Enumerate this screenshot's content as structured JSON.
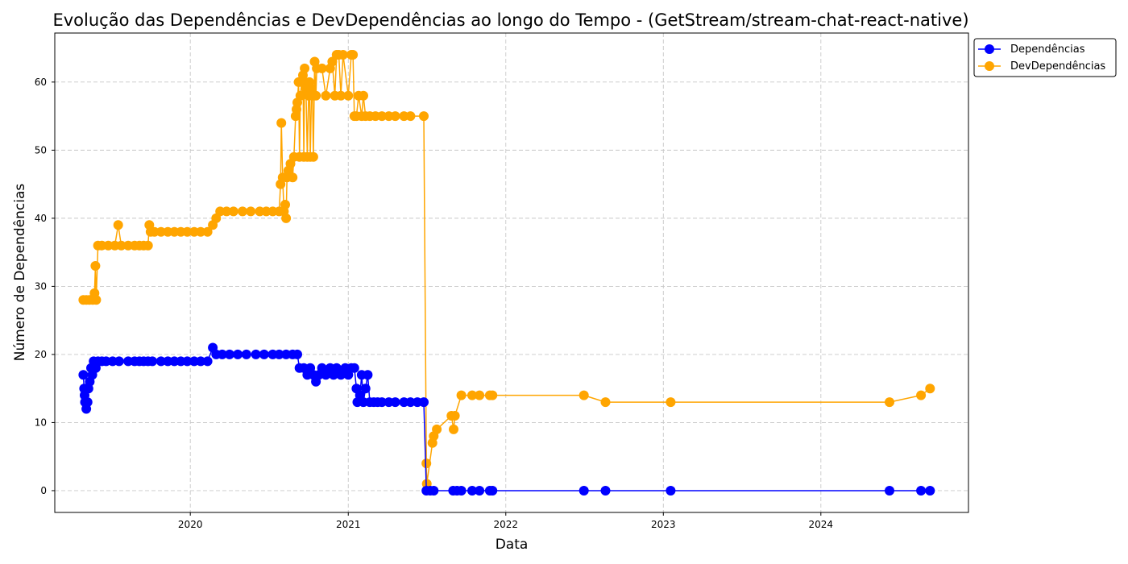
{
  "chart_data": {
    "type": "line",
    "title": "Evolução das Dependências e DevDependências ao longo do Tempo - (GetStream/stream-chat-react-native)",
    "xlabel": "Data",
    "ylabel": "Número de Dependências",
    "x_ticks": [
      "2020",
      "2021",
      "2022",
      "2023",
      "2024"
    ],
    "y_ticks": [
      "0",
      "10",
      "20",
      "30",
      "40",
      "50",
      "60"
    ],
    "xlim": [
      "2019-02-21",
      "2024-12-08"
    ],
    "ylim": [
      -3.2,
      67.2
    ],
    "grid": true,
    "legend_position": "outside top-right",
    "series": [
      {
        "name": "Dependências",
        "color": "#0000ff",
        "points": [
          [
            "2019-04-28",
            17
          ],
          [
            "2019-04-30",
            15
          ],
          [
            "2019-05-01",
            14
          ],
          [
            "2019-05-02",
            13
          ],
          [
            "2019-05-05",
            12
          ],
          [
            "2019-05-08",
            13
          ],
          [
            "2019-05-10",
            15
          ],
          [
            "2019-05-13",
            16
          ],
          [
            "2019-05-16",
            18
          ],
          [
            "2019-05-19",
            17
          ],
          [
            "2019-05-22",
            19
          ],
          [
            "2019-05-27",
            18
          ],
          [
            "2019-06-01",
            19
          ],
          [
            "2019-06-10",
            19
          ],
          [
            "2019-06-20",
            19
          ],
          [
            "2019-07-05",
            19
          ],
          [
            "2019-07-20",
            19
          ],
          [
            "2019-08-10",
            19
          ],
          [
            "2019-08-25",
            19
          ],
          [
            "2019-09-05",
            19
          ],
          [
            "2019-09-15",
            19
          ],
          [
            "2019-09-25",
            19
          ],
          [
            "2019-10-05",
            19
          ],
          [
            "2019-10-25",
            19
          ],
          [
            "2019-11-10",
            19
          ],
          [
            "2019-11-25",
            19
          ],
          [
            "2019-12-10",
            19
          ],
          [
            "2019-12-25",
            19
          ],
          [
            "2020-01-10",
            19
          ],
          [
            "2020-01-25",
            19
          ],
          [
            "2020-02-10",
            19
          ],
          [
            "2020-02-22",
            21
          ],
          [
            "2020-03-01",
            20
          ],
          [
            "2020-03-15",
            20
          ],
          [
            "2020-04-01",
            20
          ],
          [
            "2020-04-20",
            20
          ],
          [
            "2020-05-10",
            20
          ],
          [
            "2020-06-01",
            20
          ],
          [
            "2020-06-20",
            20
          ],
          [
            "2020-07-10",
            20
          ],
          [
            "2020-07-25",
            20
          ],
          [
            "2020-08-10",
            20
          ],
          [
            "2020-08-25",
            20
          ],
          [
            "2020-09-05",
            20
          ],
          [
            "2020-09-10",
            18
          ],
          [
            "2020-09-20",
            18
          ],
          [
            "2020-09-28",
            17
          ],
          [
            "2020-10-05",
            18
          ],
          [
            "2020-10-12",
            17
          ],
          [
            "2020-10-18",
            16
          ],
          [
            "2020-10-25",
            17
          ],
          [
            "2020-11-01",
            18
          ],
          [
            "2020-11-10",
            17
          ],
          [
            "2020-11-20",
            18
          ],
          [
            "2020-11-28",
            17
          ],
          [
            "2020-12-05",
            18
          ],
          [
            "2020-12-15",
            17
          ],
          [
            "2020-12-25",
            18
          ],
          [
            "2021-01-01",
            17
          ],
          [
            "2021-01-08",
            18
          ],
          [
            "2021-01-15",
            18
          ],
          [
            "2021-01-20",
            15
          ],
          [
            "2021-01-22",
            13
          ],
          [
            "2021-01-28",
            14
          ],
          [
            "2021-02-01",
            17
          ],
          [
            "2021-02-05",
            13
          ],
          [
            "2021-02-10",
            15
          ],
          [
            "2021-02-15",
            17
          ],
          [
            "2021-02-20",
            13
          ],
          [
            "2021-03-01",
            13
          ],
          [
            "2021-03-10",
            13
          ],
          [
            "2021-03-20",
            13
          ],
          [
            "2021-04-05",
            13
          ],
          [
            "2021-04-20",
            13
          ],
          [
            "2021-05-10",
            13
          ],
          [
            "2021-05-25",
            13
          ],
          [
            "2021-06-10",
            13
          ],
          [
            "2021-06-25",
            13
          ],
          [
            "2021-07-01",
            0
          ],
          [
            "2021-07-10",
            0
          ],
          [
            "2021-07-18",
            0
          ],
          [
            "2021-09-01",
            0
          ],
          [
            "2021-09-10",
            0
          ],
          [
            "2021-09-20",
            0
          ],
          [
            "2021-10-15",
            0
          ],
          [
            "2021-11-01",
            0
          ],
          [
            "2021-11-25",
            0
          ],
          [
            "2021-12-01",
            0
          ],
          [
            "2022-07-01",
            0
          ],
          [
            "2022-08-20",
            0
          ],
          [
            "2023-01-18",
            0
          ],
          [
            "2024-06-08",
            0
          ],
          [
            "2024-08-20",
            0
          ],
          [
            "2024-09-10",
            0
          ]
        ]
      },
      {
        "name": "DevDependências",
        "color": "#ffa500",
        "points": [
          [
            "2019-04-28",
            28
          ],
          [
            "2019-05-05",
            28
          ],
          [
            "2019-05-12",
            28
          ],
          [
            "2019-05-20",
            28
          ],
          [
            "2019-05-24",
            29
          ],
          [
            "2019-05-26",
            33
          ],
          [
            "2019-05-28",
            28
          ],
          [
            "2019-06-01",
            36
          ],
          [
            "2019-06-10",
            36
          ],
          [
            "2019-06-25",
            36
          ],
          [
            "2019-07-10",
            36
          ],
          [
            "2019-07-18",
            39
          ],
          [
            "2019-07-25",
            36
          ],
          [
            "2019-08-10",
            36
          ],
          [
            "2019-08-25",
            36
          ],
          [
            "2019-09-05",
            36
          ],
          [
            "2019-09-15",
            36
          ],
          [
            "2019-09-25",
            36
          ],
          [
            "2019-09-28",
            39
          ],
          [
            "2019-10-01",
            38
          ],
          [
            "2019-10-10",
            38
          ],
          [
            "2019-10-25",
            38
          ],
          [
            "2019-11-10",
            38
          ],
          [
            "2019-11-25",
            38
          ],
          [
            "2019-12-10",
            38
          ],
          [
            "2019-12-25",
            38
          ],
          [
            "2020-01-10",
            38
          ],
          [
            "2020-01-25",
            38
          ],
          [
            "2020-02-10",
            38
          ],
          [
            "2020-02-22",
            39
          ],
          [
            "2020-03-01",
            40
          ],
          [
            "2020-03-10",
            41
          ],
          [
            "2020-03-25",
            41
          ],
          [
            "2020-04-10",
            41
          ],
          [
            "2020-05-01",
            41
          ],
          [
            "2020-05-20",
            41
          ],
          [
            "2020-06-10",
            41
          ],
          [
            "2020-06-25",
            41
          ],
          [
            "2020-07-10",
            41
          ],
          [
            "2020-07-25",
            41
          ],
          [
            "2020-07-28",
            45
          ],
          [
            "2020-07-30",
            54
          ],
          [
            "2020-08-02",
            46
          ],
          [
            "2020-08-05",
            41
          ],
          [
            "2020-08-08",
            42
          ],
          [
            "2020-08-10",
            40
          ],
          [
            "2020-08-12",
            46
          ],
          [
            "2020-08-15",
            47
          ],
          [
            "2020-08-20",
            48
          ],
          [
            "2020-08-25",
            46
          ],
          [
            "2020-08-28",
            49
          ],
          [
            "2020-09-01",
            55
          ],
          [
            "2020-09-03",
            56
          ],
          [
            "2020-09-05",
            57
          ],
          [
            "2020-09-08",
            60
          ],
          [
            "2020-09-10",
            49
          ],
          [
            "2020-09-12",
            58
          ],
          [
            "2020-09-15",
            60
          ],
          [
            "2020-09-18",
            61
          ],
          [
            "2020-09-20",
            49
          ],
          [
            "2020-09-22",
            62
          ],
          [
            "2020-09-25",
            59
          ],
          [
            "2020-09-28",
            49
          ],
          [
            "2020-10-01",
            58
          ],
          [
            "2020-10-03",
            60
          ],
          [
            "2020-10-05",
            49
          ],
          [
            "2020-10-08",
            59
          ],
          [
            "2020-10-10",
            58
          ],
          [
            "2020-10-12",
            49
          ],
          [
            "2020-10-15",
            63
          ],
          [
            "2020-10-18",
            58
          ],
          [
            "2020-10-20",
            62
          ],
          [
            "2020-11-01",
            62
          ],
          [
            "2020-11-10",
            58
          ],
          [
            "2020-11-20",
            62
          ],
          [
            "2020-11-25",
            63
          ],
          [
            "2020-12-01",
            58
          ],
          [
            "2020-12-05",
            64
          ],
          [
            "2020-12-10",
            64
          ],
          [
            "2020-12-15",
            58
          ],
          [
            "2020-12-20",
            64
          ],
          [
            "2021-01-01",
            58
          ],
          [
            "2021-01-08",
            64
          ],
          [
            "2021-01-12",
            64
          ],
          [
            "2021-01-15",
            55
          ],
          [
            "2021-01-20",
            55
          ],
          [
            "2021-01-25",
            58
          ],
          [
            "2021-02-01",
            55
          ],
          [
            "2021-02-05",
            58
          ],
          [
            "2021-02-10",
            55
          ],
          [
            "2021-02-20",
            55
          ],
          [
            "2021-03-05",
            55
          ],
          [
            "2021-03-20",
            55
          ],
          [
            "2021-04-05",
            55
          ],
          [
            "2021-04-20",
            55
          ],
          [
            "2021-05-10",
            55
          ],
          [
            "2021-05-25",
            55
          ],
          [
            "2021-06-25",
            55
          ],
          [
            "2021-07-01",
            4
          ],
          [
            "2021-07-02",
            1
          ],
          [
            "2021-07-15",
            7
          ],
          [
            "2021-07-18",
            8
          ],
          [
            "2021-07-25",
            9
          ],
          [
            "2021-08-28",
            11
          ],
          [
            "2021-09-02",
            9
          ],
          [
            "2021-09-05",
            11
          ],
          [
            "2021-09-20",
            14
          ],
          [
            "2021-10-15",
            14
          ],
          [
            "2021-11-01",
            14
          ],
          [
            "2021-11-25",
            14
          ],
          [
            "2021-12-01",
            14
          ],
          [
            "2022-07-01",
            14
          ],
          [
            "2022-08-20",
            13
          ],
          [
            "2023-01-18",
            13
          ],
          [
            "2024-06-08",
            13
          ],
          [
            "2024-08-20",
            14
          ],
          [
            "2024-09-10",
            15
          ]
        ]
      }
    ]
  }
}
